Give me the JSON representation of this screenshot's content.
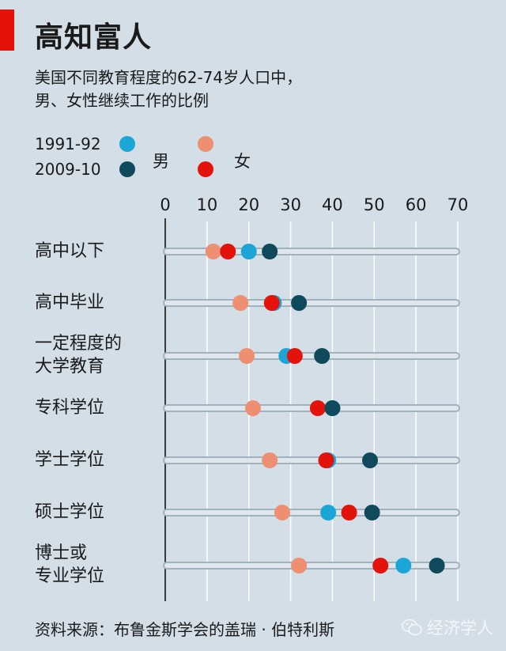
{
  "title": "高知富人",
  "subtitle_lines": [
    "美国不同教育程度的62-74岁人口中，",
    "男、女性继续工作的比例"
  ],
  "legend": {
    "years": [
      "1991-92",
      "2009-10"
    ],
    "male_label": "男",
    "female_label": "女"
  },
  "colors": {
    "male_1991": "#1ba6d6",
    "male_2009": "#0e4a5c",
    "female_1991": "#ef8f72",
    "female_2009": "#e3120b",
    "bar": "#9fb2be",
    "axis": "#3a3a3a",
    "accent": "#e3120b"
  },
  "chart_data": {
    "type": "dot",
    "title": "高知富人",
    "xlim": [
      0,
      70
    ],
    "xticks": [
      0,
      10,
      20,
      30,
      40,
      50,
      60,
      70
    ],
    "categories": [
      {
        "label": "高中以下",
        "lines": [
          "高中以下"
        ]
      },
      {
        "label": "高中毕业",
        "lines": [
          "高中毕业"
        ]
      },
      {
        "label": "一定程度的大学教育",
        "lines": [
          "一定程度的",
          "大学教育"
        ]
      },
      {
        "label": "专科学位",
        "lines": [
          "专科学位"
        ]
      },
      {
        "label": "学士学位",
        "lines": [
          "学士学位"
        ]
      },
      {
        "label": "硕士学位",
        "lines": [
          "硕士学位"
        ]
      },
      {
        "label": "博士或专业学位",
        "lines": [
          "博士或",
          "专业学位"
        ]
      }
    ],
    "series": [
      {
        "name": "男 1991-92",
        "color_key": "male_1991",
        "values": [
          20,
          26,
          29,
          40,
          39,
          39,
          57
        ]
      },
      {
        "name": "女 1991-92",
        "color_key": "female_1991",
        "values": [
          11.5,
          18,
          19.5,
          21,
          25,
          28,
          32
        ]
      },
      {
        "name": "男 2009-10",
        "color_key": "male_2009",
        "values": [
          25,
          32,
          37.5,
          40,
          49,
          49.5,
          65
        ]
      },
      {
        "name": "女 2009-10",
        "color_key": "female_2009",
        "values": [
          15,
          25.5,
          31,
          36.5,
          38.5,
          44,
          51.5
        ]
      }
    ]
  },
  "source": "资料来源：布鲁金斯学会的盖瑞 · 伯特利斯",
  "watermark": "经济学人"
}
